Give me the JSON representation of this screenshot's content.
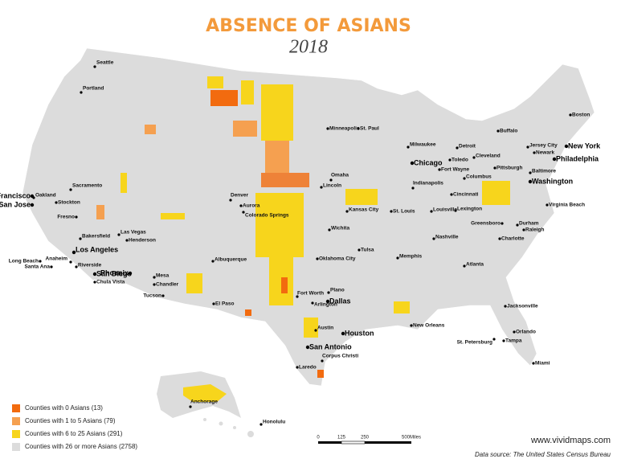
{
  "header": {
    "title": "ABSENCE OF ASIANS",
    "subtitle": "2018"
  },
  "cities": [
    "Seattle",
    "Portland",
    "Sacramento",
    "Oakland",
    "Stockton",
    "Fresno",
    "Bakersfield",
    "Las Vegas",
    "Henderson",
    "Long Beach",
    "Anaheim",
    "Santa Ana",
    "Riverside",
    "Chula Vista",
    "Mesa",
    "Chandler",
    "Tucson",
    "El Paso",
    "Albuquerque",
    "Denver",
    "Aurora",
    "Colorado Springs",
    "Omaha",
    "Lincoln",
    "Kansas City",
    "Wichita",
    "Tulsa",
    "Oklahoma City",
    "Minneapolis",
    "St. Paul",
    "Milwaukee",
    "Detroit",
    "Toledo",
    "Cleveland",
    "Fort Wayne",
    "Indianapolis",
    "Cincinnati",
    "Columbus",
    "Pittsburgh",
    "Louisville",
    "Lexington",
    "St. Louis",
    "Nashville",
    "Memphis",
    "Atlanta",
    "New Orleans",
    "Austin",
    "Corpus Christi",
    "Laredo",
    "Fort Worth",
    "Arlington",
    "Plano",
    "Jacksonville",
    "Orlando",
    "Tampa",
    "St. Petersburg",
    "Miami",
    "Charlotte",
    "Greensboro",
    "Durham",
    "Raleigh",
    "Virginia Beach",
    "Baltimore",
    "Jersey City",
    "Newark",
    "Buffalo",
    "Boston",
    "Anchorage",
    "Honolulu"
  ],
  "major_cities": [
    "San Francisco",
    "San Jose",
    "Los Angeles",
    "San Diego",
    "Phoenix",
    "Chicago",
    "Dallas",
    "Houston",
    "San Antonio",
    "Washington",
    "Philadelphia",
    "New York"
  ],
  "legend": [
    {
      "label": "Counties with 0 Asians (13)",
      "color": "#f26b0f"
    },
    {
      "label": "Counties with 1 to 5 Asians (79)",
      "color": "#f5a050"
    },
    {
      "label": "Counties with 6 to 25 Asians (291)",
      "color": "#f7d51c"
    },
    {
      "label": "Counties with 26 or more Asians (2758)",
      "color": "#dcdcdc"
    }
  ],
  "scale_bar": [
    "0",
    "125",
    "250",
    "500Miles"
  ],
  "footer": {
    "website": "www.vividmaps.com",
    "source": "Data source: The United States Census Bureau"
  }
}
